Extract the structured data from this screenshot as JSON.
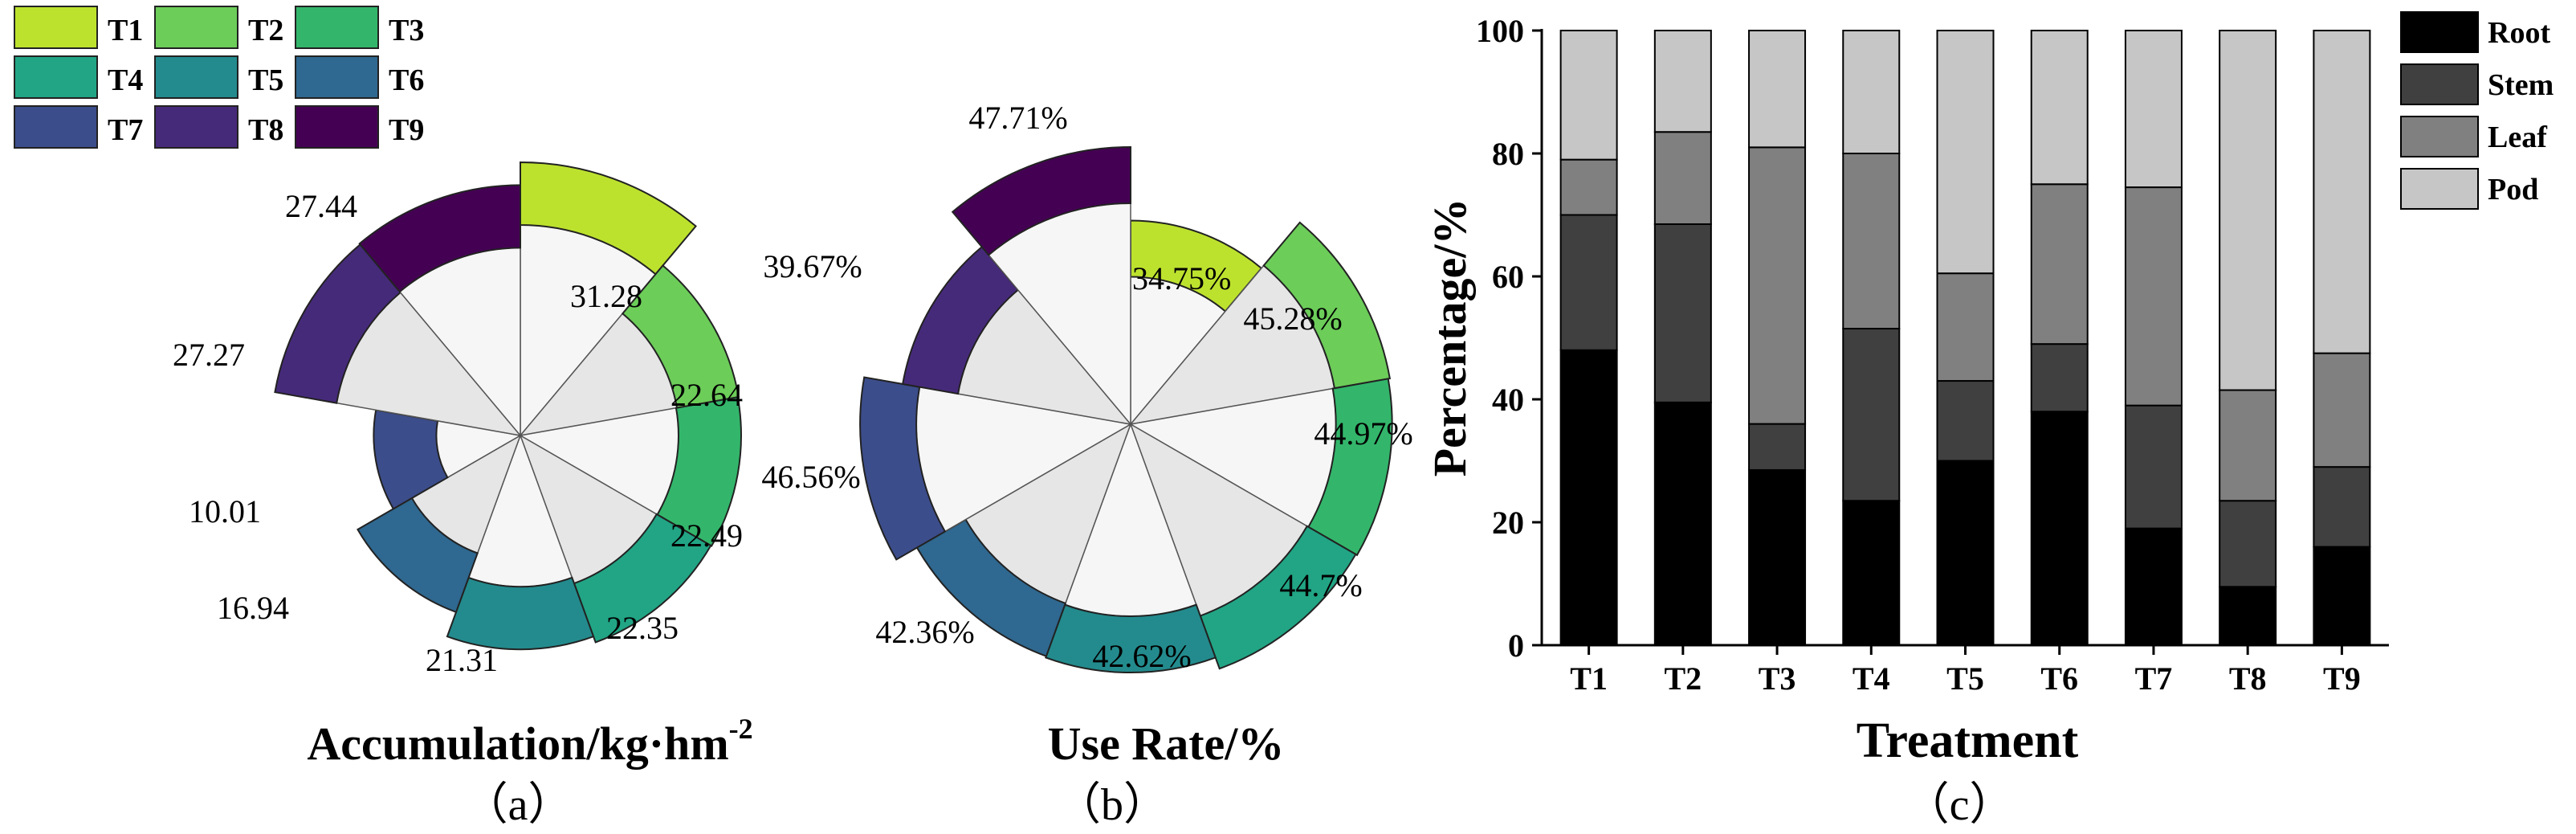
{
  "legend_top": {
    "entries": [
      {
        "label": "T1",
        "color": "#bde22e"
      },
      {
        "label": "T2",
        "color": "#6ccd59"
      },
      {
        "label": "T3",
        "color": "#33b66b"
      },
      {
        "label": "T4",
        "color": "#21a585"
      },
      {
        "label": "T5",
        "color": "#238b8d"
      },
      {
        "label": "T6",
        "color": "#2f6890"
      },
      {
        "label": "T7",
        "color": "#3c4d8b"
      },
      {
        "label": "T8",
        "color": "#462a7a"
      },
      {
        "label": "T9",
        "color": "#440154"
      }
    ]
  },
  "chart_data": [
    {
      "type": "pie",
      "subtype": "nightingale-rose",
      "title": "Accumulation/kg·hm",
      "title_sup": "-2",
      "panel": "（a）",
      "categories": [
        "T1",
        "T2",
        "T3",
        "T4",
        "T5",
        "T6",
        "T7",
        "T8",
        "T9"
      ],
      "values": [
        31.28,
        22.64,
        22.49,
        22.35,
        21.31,
        16.94,
        10.01,
        27.27,
        27.44
      ],
      "labels": [
        "31.28",
        "22.64",
        "22.49",
        "22.35",
        "21.31",
        "16.94",
        "10.01",
        "27.27",
        "27.44"
      ]
    },
    {
      "type": "pie",
      "subtype": "nightingale-rose",
      "title": "Use Rate/%",
      "panel": "（b）",
      "categories": [
        "T1",
        "T2",
        "T3",
        "T4",
        "T5",
        "T6",
        "T7",
        "T8",
        "T9"
      ],
      "values": [
        34.75,
        45.28,
        44.97,
        44.7,
        42.62,
        42.36,
        46.56,
        39.67,
        47.71
      ],
      "labels": [
        "34.75%",
        "45.28%",
        "44.97%",
        "44.7%",
        "42.62%",
        "42.36%",
        "46.56%",
        "39.67%",
        "47.71%"
      ]
    },
    {
      "type": "bar",
      "subtype": "stacked-100",
      "xlabel": "Treatment",
      "ylabel": "Percentage/%",
      "panel": "（c）",
      "categories": [
        "T1",
        "T2",
        "T3",
        "T4",
        "T5",
        "T6",
        "T7",
        "T8",
        "T9"
      ],
      "ylim": [
        0,
        100
      ],
      "yticks": [
        "0",
        "20",
        "40",
        "60",
        "80",
        "100"
      ],
      "series": [
        {
          "name": "Root",
          "color": "#000000",
          "values": [
            48,
            39.5,
            28.5,
            23.5,
            30,
            38,
            19,
            9.5,
            16
          ]
        },
        {
          "name": "Stem",
          "color": "#404040",
          "values": [
            22,
            29,
            7.5,
            28,
            13,
            11,
            20,
            14,
            13
          ]
        },
        {
          "name": "Leaf",
          "color": "#808080",
          "values": [
            9,
            15,
            45,
            28.5,
            17.5,
            26,
            35.5,
            18,
            18.5
          ]
        },
        {
          "name": "Pod",
          "color": "#c6c6c6",
          "values": [
            21,
            16.5,
            19,
            20,
            39.5,
            25,
            25.5,
            58.5,
            52.5
          ]
        }
      ]
    }
  ]
}
